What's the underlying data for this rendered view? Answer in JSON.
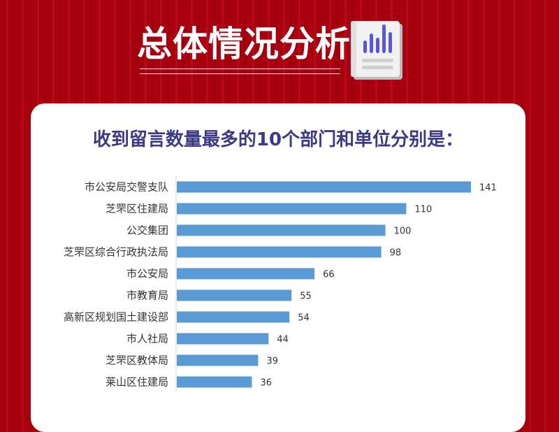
{
  "header": {
    "title": "总体情况分析",
    "icon": "bar-chart-report-icon"
  },
  "colors": {
    "background": "#a8000f",
    "card": "#ffffff",
    "title_accent": "#3d3987",
    "bar": "#5b9bd5",
    "icon_bars": "#5a57d6"
  },
  "chart_data": {
    "type": "bar",
    "orientation": "horizontal",
    "title": "收到留言数量最多的10个部门和单位分别是：",
    "xlabel": "",
    "ylabel": "",
    "xlim": [
      0,
      141
    ],
    "grid": false,
    "legend": "none",
    "data_labels": true,
    "categories": [
      "市公安局交警支队",
      "芝罘区住建局",
      "公交集团",
      "芝罘区综合行政执法局",
      "市公安局",
      "市教育局",
      "高新区规划国土建设部",
      "市人社局",
      "芝罘区教体局",
      "莱山区住建局"
    ],
    "values": [
      141,
      110,
      100,
      98,
      66,
      55,
      54,
      44,
      39,
      36
    ]
  }
}
